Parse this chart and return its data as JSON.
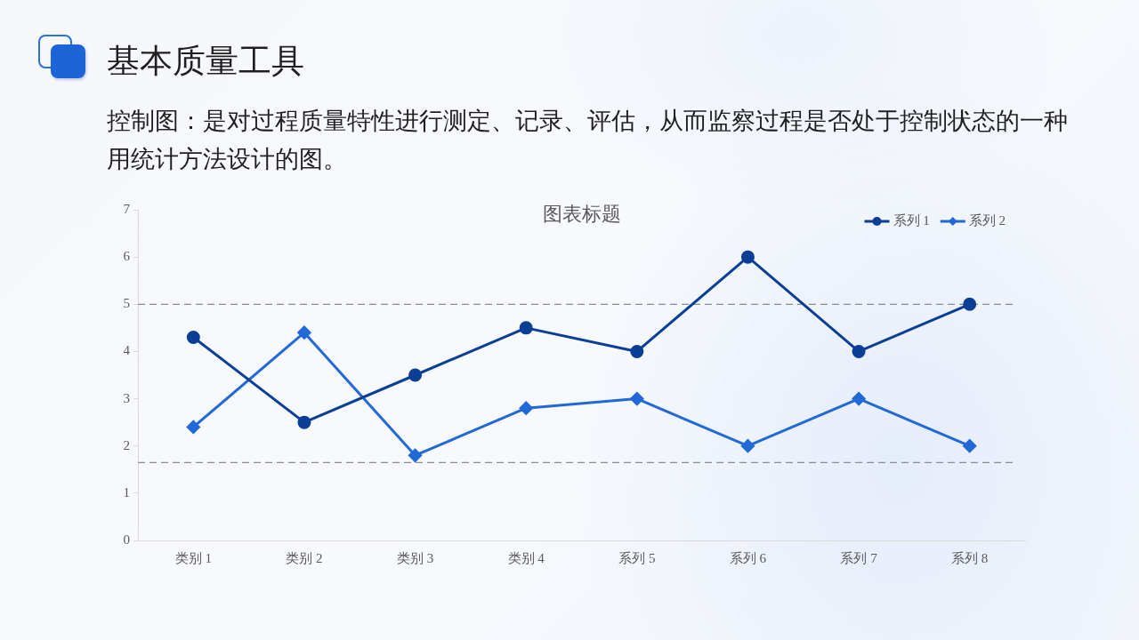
{
  "chart_data": {
    "type": "line",
    "title": "图表标题",
    "annotations": [
      "基本质量工具",
      "控制图：是对过程质量特性进行测定、记录、评估，从而监察过程是否处于控制状态的一种用统计方法设计的图。"
    ],
    "categories": [
      "类别 1",
      "类别 2",
      "类别 3",
      "类别 4",
      "系列 5",
      "系列 6",
      "系列 7",
      "系列 8"
    ],
    "series": [
      {
        "name": "系列 1",
        "color": "#0b3f95",
        "marker": "circle",
        "values": [
          4.3,
          2.5,
          3.5,
          4.5,
          4.0,
          6.0,
          4.0,
          5.0
        ]
      },
      {
        "name": "系列 2",
        "color": "#2169d6",
        "marker": "diamond",
        "values": [
          2.4,
          4.4,
          1.8,
          2.8,
          3.0,
          2.0,
          3.0,
          2.0
        ]
      }
    ],
    "ylim": [
      0,
      7
    ],
    "yticks": [
      0,
      1,
      2,
      3,
      4,
      5,
      6,
      7
    ],
    "grid": false,
    "legend": "top right",
    "line_style": "solid",
    "ref_lines": [
      {
        "axis": "y",
        "value": 5,
        "color": "#8c8c8c",
        "line_style": "dashed"
      },
      {
        "axis": "y",
        "value": 1.65,
        "color": "#8c8c8c",
        "line_style": "dashed"
      }
    ]
  }
}
